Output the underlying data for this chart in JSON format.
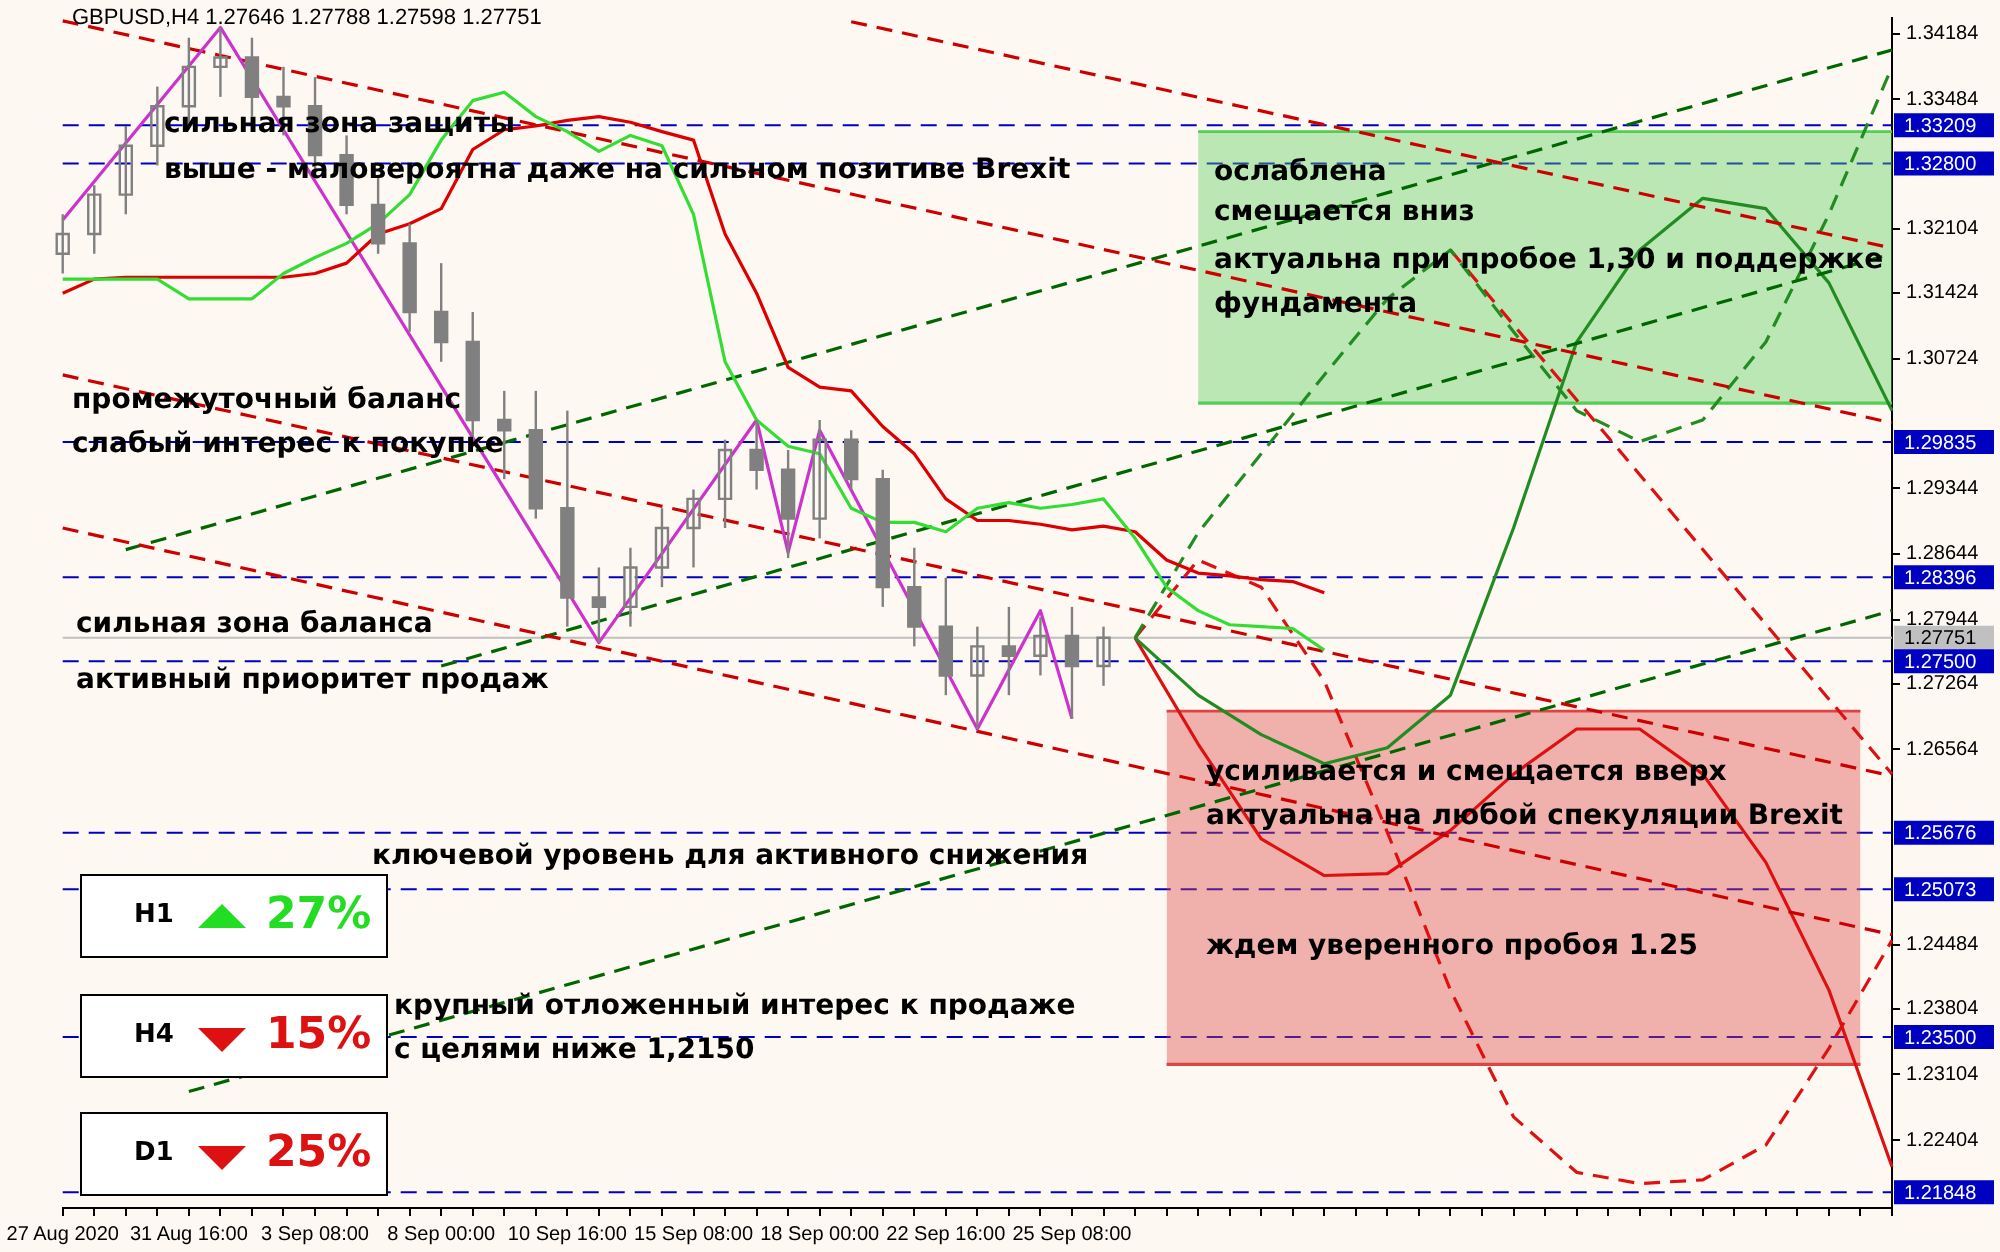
{
  "chart_data": {
    "type": "candlestick",
    "title": "GBPUSD,H4 1.27646 1.27788 1.27598 1.27751",
    "color": "#808080",
    "categories": [
      "27 Aug 2020",
      null,
      null,
      null,
      "31 Aug 16:00",
      null,
      null,
      null,
      "3 Sep 08:00",
      null,
      null,
      null,
      "8 Sep 00:00",
      null,
      null,
      null,
      "10 Sep 16:00",
      null,
      null,
      null,
      "15 Sep 08:00",
      null,
      null,
      null,
      "18 Sep 00:00",
      null,
      null,
      null,
      "22 Sep 16:00",
      null,
      null,
      null,
      "25 Sep 08:00",
      null,
      null,
      null,
      null,
      null,
      null,
      null,
      null,
      null,
      null,
      null,
      null,
      null,
      null,
      null,
      null,
      null,
      null,
      null,
      null,
      null,
      null,
      null,
      null,
      null,
      null
    ],
    "ohlc": [
      [
        1.3184,
        1.3226,
        1.3163,
        1.3205
      ],
      [
        1.3205,
        1.3257,
        1.3184,
        1.3247
      ],
      [
        1.3247,
        1.332,
        1.3226,
        1.3299
      ],
      [
        1.3299,
        1.3362,
        1.3278,
        1.3341
      ],
      [
        1.3341,
        1.3414,
        1.332,
        1.3383
      ],
      [
        1.3383,
        1.3425,
        1.3351,
        1.3393
      ],
      [
        1.3393,
        1.3414,
        1.333,
        1.3351
      ],
      [
        1.3351,
        1.3383,
        1.331,
        1.3341
      ],
      [
        1.3341,
        1.3372,
        1.3268,
        1.3289
      ],
      [
        1.3289,
        1.331,
        1.3226,
        1.3236
      ],
      [
        1.3236,
        1.3268,
        1.3184,
        1.3195
      ],
      [
        1.3195,
        1.3216,
        1.3101,
        1.3122
      ],
      [
        1.3122,
        1.3174,
        1.3069,
        1.309
      ],
      [
        1.309,
        1.3122,
        1.2986,
        1.3007
      ],
      [
        1.3007,
        1.3038,
        1.2944,
        1.2996
      ],
      [
        1.2996,
        1.3038,
        1.2902,
        1.2913
      ],
      [
        1.2913,
        1.3017,
        1.2787,
        1.2818
      ],
      [
        1.2818,
        1.285,
        1.277,
        1.2808
      ],
      [
        1.2808,
        1.2871,
        1.2787,
        1.285
      ],
      [
        1.285,
        1.2913,
        1.2829,
        1.2892
      ],
      [
        1.2892,
        1.2933,
        1.285,
        1.2923
      ],
      [
        1.2923,
        1.2986,
        1.2892,
        1.2975
      ],
      [
        1.2975,
        1.3007,
        1.2933,
        1.2954
      ],
      [
        1.2954,
        1.2975,
        1.286,
        1.2902
      ],
      [
        1.2902,
        1.3007,
        1.2881,
        1.2986
      ],
      [
        1.2986,
        1.2996,
        1.2933,
        1.2944
      ],
      [
        1.2944,
        1.2954,
        1.2808,
        1.2829
      ],
      [
        1.2829,
        1.2871,
        1.2766,
        1.2787
      ],
      [
        1.2787,
        1.2839,
        1.2714,
        1.2735
      ],
      [
        1.2735,
        1.2787,
        1.2678,
        1.2766
      ],
      [
        1.2766,
        1.2808,
        1.2714,
        1.2756
      ],
      [
        1.2756,
        1.2797,
        1.2735,
        1.2777
      ],
      [
        1.2777,
        1.2808,
        1.2689,
        1.2745
      ],
      [
        1.2745,
        1.2787,
        1.2724,
        1.27751
      ],
      null,
      null,
      null,
      null,
      null,
      null,
      null,
      null,
      null,
      null,
      null,
      null,
      null,
      null,
      null,
      null,
      null,
      null,
      null,
      null,
      null,
      null,
      null,
      null,
      null
    ],
    "series": [
      {
        "type": "line",
        "color": "#33dd33",
        "values": [
          1.3157,
          1.3157,
          1.3157,
          1.3157,
          1.3136,
          1.3136,
          1.3136,
          1.3163,
          1.318,
          1.3195,
          1.3216,
          1.3247,
          1.3305,
          1.3347,
          1.3356,
          1.333,
          1.3314,
          1.3293,
          1.331,
          1.3299,
          1.3226,
          1.3069,
          1.3007,
          1.2979,
          1.2971,
          1.2913,
          1.2898,
          1.2898,
          1.2888,
          1.2913,
          1.2919,
          1.2913,
          1.2917,
          1.2923,
          1.2881,
          1.2829,
          1.2804,
          1.2789,
          1.2787,
          1.2785,
          1.2762,
          null,
          null,
          null,
          null,
          null,
          null,
          null,
          null,
          null,
          null,
          null,
          null,
          null,
          null,
          null,
          null,
          null,
          null
        ]
      },
      {
        "type": "line",
        "color": "#dd0000",
        "values": [
          1.3142,
          1.3157,
          1.3159,
          1.3159,
          1.3159,
          1.3159,
          1.3159,
          1.3159,
          1.3163,
          1.3174,
          1.3205,
          1.3216,
          1.3232,
          1.3295,
          1.3316,
          1.332,
          1.3326,
          1.333,
          1.3324,
          1.3314,
          1.3305,
          1.3205,
          1.3142,
          1.3063,
          1.3042,
          1.3038,
          1.3,
          1.2971,
          1.2923,
          1.29,
          1.29,
          1.2896,
          1.289,
          1.2894,
          1.2888,
          1.2858,
          1.2844,
          1.2841,
          1.2837,
          1.2835,
          1.2823,
          null,
          null,
          null,
          null,
          null,
          null,
          null,
          null,
          null,
          null,
          null,
          null,
          null,
          null,
          null,
          null,
          null,
          null
        ]
      },
      {
        "type": "line",
        "color": "#cc33cc",
        "values": [
          1.322,
          null,
          null,
          null,
          null,
          1.3425,
          null,
          null,
          null,
          null,
          null,
          null,
          null,
          null,
          null,
          null,
          null,
          1.277,
          null,
          null,
          null,
          null,
          1.3007,
          1.2866,
          1.2996,
          null,
          null,
          null,
          null,
          1.2678,
          null,
          1.2804,
          1.2689,
          null,
          null,
          null,
          null,
          null,
          null,
          null,
          null,
          null,
          null,
          null,
          null,
          null,
          null,
          null,
          null,
          null,
          null,
          null,
          null,
          null,
          null,
          null,
          null,
          null,
          null
        ]
      },
      {
        "type": "line",
        "color": "#cc0000",
        "line_style": "dashed",
        "values": [
          null,
          null,
          null,
          null,
          null,
          null,
          null,
          null,
          null,
          null,
          null,
          null,
          null,
          null,
          null,
          null,
          null,
          null,
          null,
          null,
          null,
          null,
          null,
          null,
          null,
          1.3431,
          null,
          null,
          null,
          null,
          null,
          null,
          null,
          null,
          null,
          null,
          null,
          null,
          null,
          null,
          null,
          null,
          null,
          null,
          null,
          null,
          null,
          null,
          null,
          null,
          null,
          null,
          null,
          null,
          null,
          null,
          null,
          null,
          1.319
        ]
      },
      {
        "type": "line",
        "color": "#cc0000",
        "line_style": "dashed",
        "values": [
          1.3432,
          null,
          null,
          null,
          null,
          null,
          null,
          null,
          null,
          null,
          null,
          null,
          null,
          null,
          null,
          null,
          null,
          null,
          null,
          null,
          null,
          null,
          null,
          null,
          null,
          null,
          null,
          null,
          null,
          null,
          null,
          null,
          null,
          null,
          null,
          null,
          null,
          null,
          null,
          null,
          null,
          null,
          null,
          null,
          null,
          null,
          null,
          null,
          null,
          null,
          null,
          null,
          null,
          null,
          null,
          null,
          null,
          null,
          1.3004
        ]
      },
      {
        "type": "line",
        "color": "#cc0000",
        "line_style": "dashed",
        "values": [
          1.3055,
          null,
          null,
          null,
          null,
          null,
          null,
          null,
          null,
          null,
          null,
          null,
          null,
          null,
          null,
          null,
          null,
          null,
          null,
          null,
          null,
          null,
          null,
          null,
          null,
          null,
          null,
          null,
          null,
          null,
          null,
          null,
          null,
          null,
          null,
          null,
          null,
          null,
          null,
          null,
          null,
          null,
          null,
          null,
          null,
          null,
          null,
          null,
          null,
          null,
          null,
          null,
          null,
          null,
          null,
          null,
          null,
          null,
          1.2628
        ]
      },
      {
        "type": "line",
        "color": "#cc0000",
        "line_style": "dashed",
        "values": [
          1.2892,
          null,
          null,
          null,
          null,
          null,
          null,
          null,
          null,
          null,
          null,
          null,
          null,
          null,
          null,
          null,
          null,
          null,
          null,
          null,
          null,
          null,
          null,
          null,
          null,
          null,
          null,
          null,
          null,
          null,
          null,
          null,
          null,
          null,
          null,
          null,
          null,
          null,
          null,
          null,
          null,
          null,
          null,
          null,
          null,
          null,
          null,
          null,
          null,
          null,
          null,
          null,
          null,
          null,
          null,
          null,
          null,
          null,
          1.2459
        ]
      },
      {
        "type": "line",
        "color": "#006600",
        "line_style": "dashed",
        "values": [
          null,
          null,
          1.2869,
          null,
          null,
          null,
          null,
          null,
          null,
          null,
          null,
          null,
          null,
          null,
          null,
          null,
          null,
          null,
          null,
          null,
          null,
          null,
          null,
          null,
          null,
          null,
          null,
          null,
          null,
          null,
          null,
          null,
          null,
          null,
          null,
          null,
          null,
          null,
          null,
          null,
          null,
          null,
          null,
          null,
          null,
          null,
          null,
          null,
          null,
          null,
          null,
          null,
          null,
          null,
          null,
          null,
          null,
          null,
          1.3401
        ]
      },
      {
        "type": "line",
        "color": "#006600",
        "line_style": "dashed",
        "values": [
          null,
          null,
          null,
          null,
          null,
          null,
          null,
          null,
          null,
          null,
          null,
          null,
          1.2745,
          null,
          null,
          null,
          null,
          null,
          null,
          null,
          null,
          null,
          null,
          null,
          null,
          null,
          null,
          null,
          null,
          null,
          null,
          null,
          null,
          null,
          null,
          null,
          null,
          null,
          null,
          null,
          null,
          null,
          null,
          null,
          null,
          null,
          null,
          null,
          null,
          null,
          null,
          null,
          null,
          null,
          null,
          null,
          null,
          null,
          1.3184
        ]
      },
      {
        "type": "line",
        "color": "#006600",
        "line_style": "dashed",
        "values": [
          null,
          null,
          null,
          null,
          1.2292,
          null,
          null,
          null,
          null,
          null,
          null,
          null,
          null,
          null,
          null,
          null,
          null,
          null,
          null,
          null,
          null,
          null,
          null,
          null,
          null,
          null,
          null,
          null,
          null,
          null,
          null,
          null,
          null,
          null,
          null,
          null,
          null,
          null,
          null,
          null,
          null,
          null,
          null,
          null,
          null,
          null,
          null,
          null,
          null,
          null,
          null,
          null,
          null,
          null,
          null,
          null,
          null,
          null,
          1.2804
        ]
      },
      {
        "type": "line",
        "color": "#228b22",
        "values": [
          null,
          null,
          null,
          null,
          null,
          null,
          null,
          null,
          null,
          null,
          null,
          null,
          null,
          null,
          null,
          null,
          null,
          null,
          null,
          null,
          null,
          null,
          null,
          null,
          null,
          null,
          null,
          null,
          null,
          null,
          null,
          null,
          null,
          null,
          1.2775,
          null,
          1.2714,
          null,
          1.2672,
          null,
          1.2641,
          null,
          1.2658,
          null,
          1.2714,
          null,
          1.2892,
          null,
          1.309,
          null,
          1.3188,
          null,
          1.3243,
          null,
          1.3232,
          null,
          1.3153,
          null,
          1.3017
        ]
      },
      {
        "type": "line",
        "color": "#228b22",
        "line_style": "dashed",
        "values": [
          null,
          null,
          null,
          null,
          null,
          null,
          null,
          null,
          null,
          null,
          null,
          null,
          null,
          null,
          null,
          null,
          null,
          null,
          null,
          null,
          null,
          null,
          null,
          null,
          null,
          null,
          null,
          null,
          null,
          null,
          null,
          null,
          null,
          null,
          1.2775,
          null,
          1.2887,
          null,
          1.2971,
          null,
          1.3055,
          null,
          1.3136,
          null,
          1.3188,
          null,
          1.3101,
          null,
          1.3017,
          null,
          1.2984,
          null,
          1.3007,
          null,
          1.309,
          null,
          1.3226,
          null,
          1.3383
        ]
      },
      {
        "type": "line",
        "color": "#dd1111",
        "values": [
          null,
          null,
          null,
          null,
          null,
          null,
          null,
          null,
          null,
          null,
          null,
          null,
          null,
          null,
          null,
          null,
          null,
          null,
          null,
          null,
          null,
          null,
          null,
          null,
          null,
          null,
          null,
          null,
          null,
          null,
          null,
          null,
          null,
          null,
          1.2775,
          null,
          1.2662,
          null,
          1.2561,
          null,
          1.2522,
          null,
          1.2524,
          null,
          1.257,
          null,
          1.263,
          null,
          1.2678,
          null,
          1.2678,
          null,
          1.263,
          null,
          1.2536,
          null,
          1.24,
          null,
          1.2212
        ]
      },
      {
        "type": "line",
        "color": "#dd1111",
        "line_style": "dashed",
        "values": [
          null,
          null,
          null,
          null,
          null,
          null,
          null,
          null,
          null,
          null,
          null,
          null,
          null,
          null,
          null,
          null,
          null,
          null,
          null,
          null,
          null,
          null,
          null,
          null,
          null,
          null,
          null,
          null,
          null,
          null,
          null,
          null,
          null,
          null,
          1.2775,
          null,
          1.2858,
          null,
          1.2829,
          null,
          1.2729,
          null,
          1.2568,
          null,
          1.24,
          null,
          1.2265,
          null,
          1.2206,
          null,
          1.2194,
          null,
          1.2198,
          null,
          1.2235,
          null,
          1.2338,
          null,
          1.2453
        ]
      },
      {
        "type": "line",
        "color": "#dd1111",
        "line_style": "dashed",
        "values": [
          null,
          null,
          null,
          null,
          null,
          null,
          null,
          null,
          null,
          null,
          null,
          null,
          null,
          null,
          null,
          null,
          null,
          null,
          null,
          null,
          null,
          null,
          null,
          null,
          null,
          null,
          null,
          null,
          null,
          null,
          null,
          null,
          null,
          null,
          null,
          null,
          null,
          null,
          null,
          null,
          null,
          null,
          null,
          null,
          1.3188,
          null,
          null,
          null,
          null,
          null,
          null,
          null,
          null,
          null,
          null,
          null,
          null,
          null,
          1.263
        ]
      },
      {
        "type": "area",
        "color": "#55cc55",
        "values": [
          null,
          null,
          null,
          null,
          null,
          null,
          null,
          null,
          null,
          null,
          null,
          null,
          null,
          null,
          null,
          null,
          null,
          null,
          null,
          null,
          null,
          null,
          null,
          null,
          null,
          null,
          null,
          null,
          null,
          null,
          null,
          null,
          null,
          null,
          null,
          null,
          1.3314,
          1.3314,
          1.3314,
          1.3314,
          1.3314,
          1.3314,
          1.3314,
          1.3314,
          1.3314,
          1.3314,
          1.3314,
          1.3314,
          1.3314,
          1.3314,
          1.3314,
          1.3314,
          1.3314,
          1.3314,
          1.3314,
          1.3314,
          1.3314,
          1.3314,
          1.3314
        ]
      },
      {
        "type": "line",
        "color": "#55cc55",
        "values": [
          null,
          null,
          null,
          null,
          null,
          null,
          null,
          null,
          null,
          null,
          null,
          null,
          null,
          null,
          null,
          null,
          null,
          null,
          null,
          null,
          null,
          null,
          null,
          null,
          null,
          null,
          null,
          null,
          null,
          null,
          null,
          null,
          null,
          null,
          null,
          null,
          1.3025,
          1.3025,
          1.3025,
          1.3025,
          1.3025,
          1.3025,
          1.3025,
          1.3025,
          1.3025,
          1.3025,
          1.3025,
          1.3025,
          1.3025,
          1.3025,
          1.3025,
          1.3025,
          1.3025,
          1.3025,
          1.3025,
          1.3025,
          1.3025,
          1.3025,
          1.3025
        ]
      },
      {
        "type": "area",
        "color": "#dd4444",
        "values": [
          null,
          null,
          null,
          null,
          null,
          null,
          null,
          null,
          null,
          null,
          null,
          null,
          null,
          null,
          null,
          null,
          null,
          null,
          null,
          null,
          null,
          null,
          null,
          null,
          null,
          null,
          null,
          null,
          null,
          null,
          null,
          null,
          null,
          null,
          null,
          1.2697,
          1.2697,
          1.2697,
          1.2697,
          1.2697,
          1.2697,
          1.2697,
          1.2697,
          1.2697,
          1.2697,
          1.2697,
          1.2697,
          1.2697,
          1.2697,
          1.2697,
          1.2697,
          1.2697,
          1.2697,
          1.2697,
          1.2697,
          1.2697,
          1.2697,
          1.2697,
          null
        ]
      },
      {
        "type": "line",
        "color": "#dd4444",
        "values": [
          null,
          null,
          null,
          null,
          null,
          null,
          null,
          null,
          null,
          null,
          null,
          null,
          null,
          null,
          null,
          null,
          null,
          null,
          null,
          null,
          null,
          null,
          null,
          null,
          null,
          null,
          null,
          null,
          null,
          null,
          null,
          null,
          null,
          null,
          null,
          1.2321,
          1.2321,
          1.2321,
          1.2321,
          1.2321,
          1.2321,
          1.2321,
          1.2321,
          1.2321,
          1.2321,
          1.2321,
          1.2321,
          1.2321,
          1.2321,
          1.2321,
          1.2321,
          1.2321,
          1.2321,
          1.2321,
          1.2321,
          1.2321,
          1.2321,
          1.2321,
          null
        ]
      }
    ],
    "ylim": [
      1.2168,
      1.3435
    ],
    "yticks": [
      1.34184,
      1.33484,
      1.32104,
      1.31424,
      1.30724,
      1.29344,
      1.28644,
      1.27944,
      1.27264,
      1.26564,
      1.24484,
      1.23804,
      1.23104,
      1.22404
    ],
    "ref_lines": [
      {
        "axis": "y",
        "value": 1.33209,
        "label": "1.33209",
        "color": "#0000c0",
        "line_style": "dashed"
      },
      {
        "axis": "y",
        "value": 1.328,
        "label": "1.32800",
        "color": "#0000c0",
        "line_style": "dashed"
      },
      {
        "axis": "y",
        "value": 1.29835,
        "label": "1.29835",
        "color": "#0000c0",
        "line_style": "dashed"
      },
      {
        "axis": "y",
        "value": 1.28396,
        "label": "1.28396",
        "color": "#0000c0",
        "line_style": "dashed"
      },
      {
        "axis": "y",
        "value": 1.27751,
        "label": "1.27751",
        "color": "#c0c0c0",
        "line_style": "solid"
      },
      {
        "axis": "y",
        "value": 1.275,
        "label": "1.27500",
        "color": "#0000c0",
        "line_style": "dashed"
      },
      {
        "axis": "y",
        "value": 1.25676,
        "label": "1.25676",
        "color": "#0000c0",
        "line_style": "dashed"
      },
      {
        "axis": "y",
        "value": 1.25073,
        "label": "1.25073",
        "color": "#0000c0",
        "line_style": "dashed"
      },
      {
        "axis": "y",
        "value": 1.235,
        "label": "1.23500",
        "color": "#0000c0",
        "line_style": "dashed"
      },
      {
        "axis": "y",
        "value": 1.21848,
        "label": "1.21848",
        "color": "#0000c0",
        "line_style": "dashed"
      }
    ],
    "annotations": [
      "сильная зона защиты",
      "выше - маловероятна даже на сильном позитиве Brexit",
      "промежуточный баланс",
      "слабый интерес к покупке",
      "сильная зона баланса",
      "активный приоритет продаж",
      "ключевой уровень для активного снижения",
      "крупный отложенный интерес к продаже",
      "с целями ниже 1,2150",
      "ослаблена",
      "смещается вниз",
      "актуальна при пробое 1,30 и поддержке",
      "фундамента",
      "усиливается и смещается вверх",
      "актуальна на любой спекуляции Brexit",
      "ждем уверенного пробоя 1.25",
      "H1",
      "27%",
      "H4",
      "15%",
      "D1",
      "25%"
    ]
  }
}
